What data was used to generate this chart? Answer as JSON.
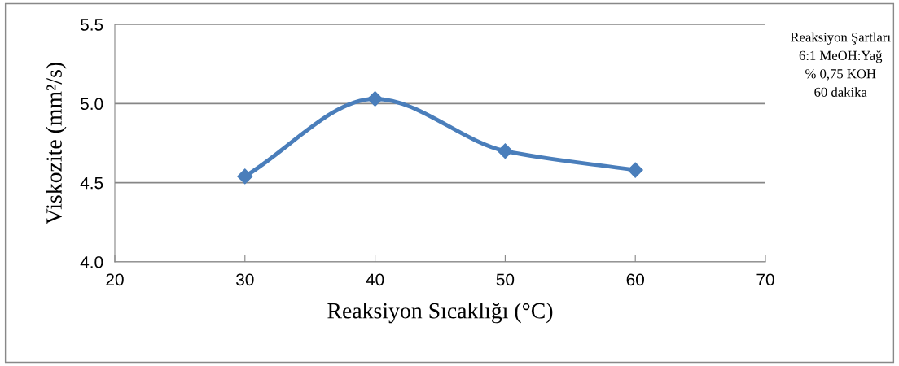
{
  "chart_data": {
    "type": "line",
    "xlabel": "Reaksiyon Sıcaklığı (°C)",
    "ylabel": "Viskozite (mm²/s)",
    "x": [
      30,
      40,
      50,
      60
    ],
    "series": [
      {
        "color": "#4a7ebb",
        "values": [
          4.54,
          5.03,
          4.7,
          4.58
        ]
      }
    ],
    "xlim": [
      20,
      70
    ],
    "xticks": [
      20,
      30,
      40,
      50,
      60,
      70
    ],
    "ylim": [
      4.0,
      5.5
    ],
    "yticks": [
      {
        "value": 4.0,
        "label": "4.0"
      },
      {
        "value": 4.5,
        "label": "4.5"
      },
      {
        "value": 5.0,
        "label": "5.0"
      },
      {
        "value": 5.5,
        "label": "5.5"
      }
    ],
    "grid": "y",
    "marker": "diamond",
    "line_style": "solid",
    "annotations": [
      "Reaksiyon Şartları",
      "6:1 MeOH:Yağ",
      "% 0,75 KOH",
      "60 dakika"
    ]
  }
}
